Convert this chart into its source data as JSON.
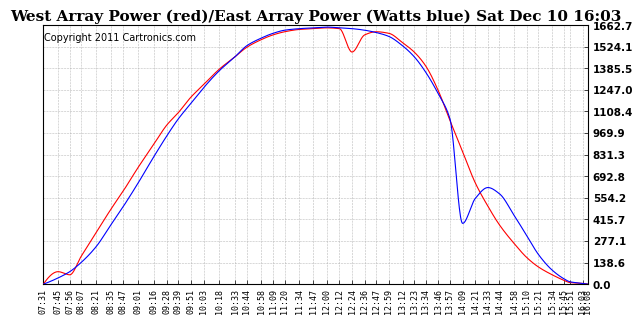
{
  "title": "West Array Power (red)/East Array Power (Watts blue) Sat Dec 10 16:03",
  "copyright": "Copyright 2011 Cartronics.com",
  "background_color": "#ffffff",
  "plot_bg_color": "#ffffff",
  "grid_color": "#aaaaaa",
  "ytick_labels": [
    "0.0",
    "138.6",
    "277.1",
    "415.7",
    "554.2",
    "692.8",
    "831.3",
    "969.9",
    "1108.4",
    "1247.0",
    "1385.5",
    "1524.1",
    "1662.7"
  ],
  "ytick_values": [
    0.0,
    138.6,
    277.1,
    415.7,
    554.2,
    692.8,
    831.3,
    969.9,
    1108.4,
    1247.0,
    1385.5,
    1524.1,
    1662.7
  ],
  "ymax": 1662.7,
  "ymin": 0.0,
  "red_color": "#ff0000",
  "blue_color": "#0000ff",
  "title_fontsize": 11,
  "copyright_fontsize": 7,
  "xtick_labels": [
    "07:31",
    "07:45",
    "07:56",
    "08:07",
    "08:21",
    "08:35",
    "08:47",
    "09:01",
    "09:16",
    "09:28",
    "09:39",
    "09:51",
    "10:03",
    "10:18",
    "10:33",
    "10:44",
    "10:58",
    "11:09",
    "11:20",
    "11:34",
    "11:47",
    "12:00",
    "12:12",
    "12:24",
    "12:36",
    "12:47",
    "12:59",
    "13:12",
    "13:23",
    "13:34",
    "13:46",
    "13:57",
    "14:09",
    "14:21",
    "14:33",
    "14:44",
    "14:58",
    "15:10",
    "15:21",
    "15:34",
    "15:45",
    "15:51",
    "16:03",
    "16:08"
  ]
}
